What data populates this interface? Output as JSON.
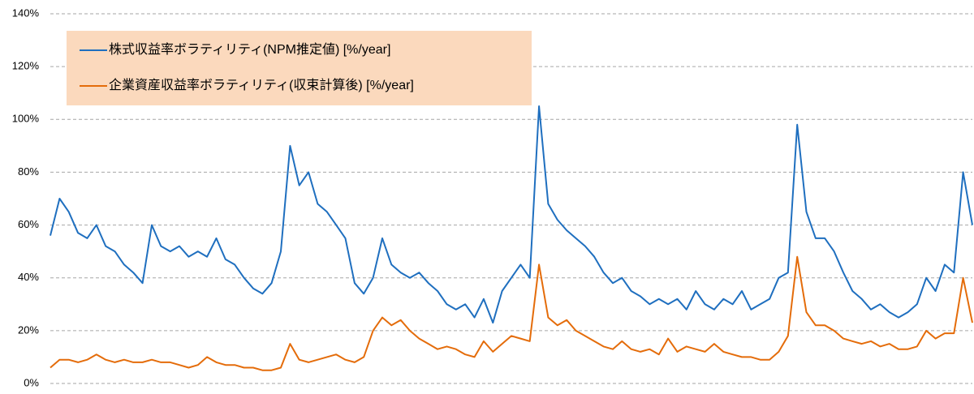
{
  "chart_data": {
    "type": "line",
    "series": [
      {
        "name": "株式収益率ボラティリティ(NPM推定値) [%/year]",
        "color": "#1f6fbf",
        "values": [
          56,
          70,
          65,
          57,
          55,
          60,
          52,
          50,
          45,
          42,
          38,
          60,
          52,
          50,
          52,
          48,
          50,
          48,
          55,
          47,
          45,
          40,
          36,
          34,
          38,
          50,
          90,
          75,
          80,
          68,
          65,
          60,
          55,
          38,
          34,
          40,
          55,
          45,
          42,
          40,
          42,
          38,
          35,
          30,
          28,
          30,
          25,
          32,
          23,
          35,
          40,
          45,
          40,
          105,
          68,
          62,
          58,
          55,
          52,
          48,
          42,
          38,
          40,
          35,
          33,
          30,
          32,
          30,
          32,
          28,
          35,
          30,
          28,
          32,
          30,
          35,
          28,
          30,
          32,
          40,
          42,
          98,
          65,
          55,
          55,
          50,
          42,
          35,
          32,
          28,
          30,
          27,
          25,
          27,
          30,
          40,
          35,
          45,
          42,
          80,
          60
        ]
      },
      {
        "name": "企業資産収益率ボラティリティ(収束計算後) [%/year]",
        "color": "#e46c0a",
        "values": [
          6,
          9,
          9,
          8,
          9,
          11,
          9,
          8,
          9,
          8,
          8,
          9,
          8,
          8,
          7,
          6,
          7,
          10,
          8,
          7,
          7,
          6,
          6,
          5,
          5,
          6,
          15,
          9,
          8,
          9,
          10,
          11,
          9,
          8,
          10,
          20,
          25,
          22,
          24,
          20,
          17,
          15,
          13,
          14,
          13,
          11,
          10,
          16,
          12,
          15,
          18,
          17,
          16,
          45,
          25,
          22,
          24,
          20,
          18,
          16,
          14,
          13,
          16,
          13,
          12,
          13,
          11,
          17,
          12,
          14,
          13,
          12,
          15,
          12,
          11,
          10,
          10,
          9,
          9,
          12,
          18,
          48,
          27,
          22,
          22,
          20,
          17,
          16,
          15,
          16,
          14,
          15,
          13,
          13,
          14,
          20,
          17,
          19,
          19,
          40,
          23
        ]
      }
    ],
    "ylim": [
      0,
      140
    ],
    "yticks": [
      {
        "value": 0,
        "label": "0%"
      },
      {
        "value": 20,
        "label": "20%"
      },
      {
        "value": 40,
        "label": "40%"
      },
      {
        "value": 60,
        "label": "60%"
      },
      {
        "value": 80,
        "label": "80%"
      },
      {
        "value": 100,
        "label": "100%"
      },
      {
        "value": 120,
        "label": "120%"
      },
      {
        "value": 140,
        "label": "140%"
      }
    ],
    "grid": true,
    "legend": "upper left"
  }
}
